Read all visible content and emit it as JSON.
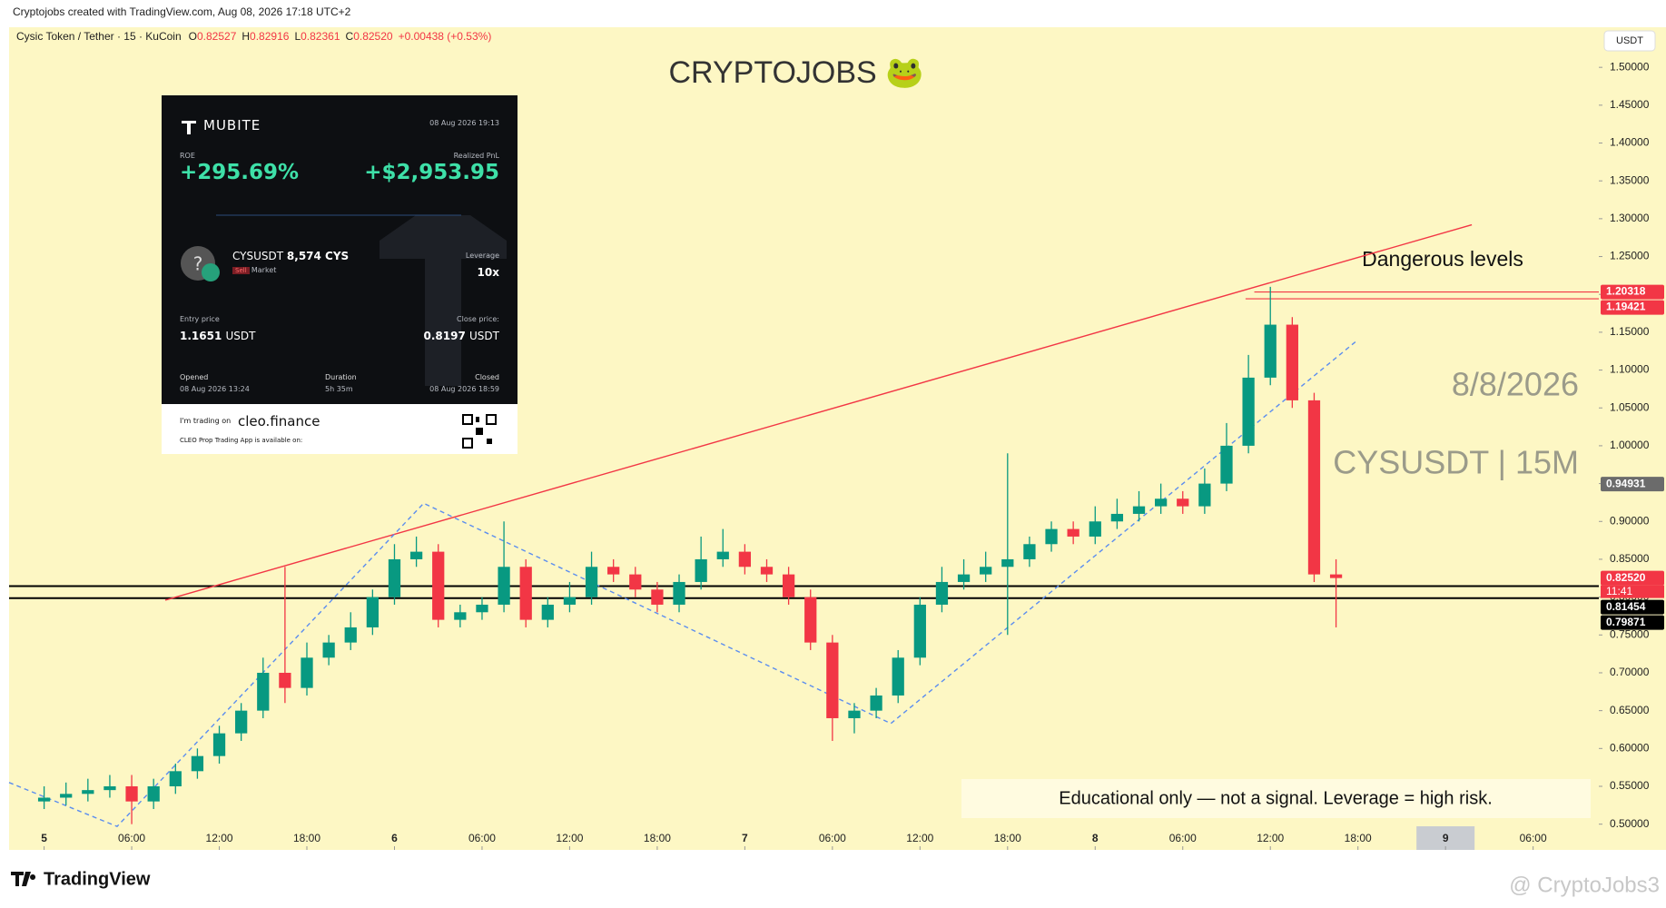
{
  "header": {
    "created": "Cryptojobs created with TradingView.com, Aug 08, 2026 17:18 UTC+2",
    "symbol": "Cysic Token / Tether · 15 · KuCoin",
    "quote_keys": [
      "O",
      "H",
      "L",
      "C"
    ],
    "quote_values": [
      "0.82527",
      "0.82916",
      "0.82361",
      "0.82520"
    ],
    "change": "+0.00438 (+0.53%)",
    "currency": "USDT"
  },
  "chart_data": {
    "type": "candlestick",
    "title": "CRYPTOJOBS 🐸",
    "up_color": "#089981",
    "down_color": "#f23645",
    "x": [
      0,
      1.5,
      3,
      4.5,
      6,
      7.5,
      9,
      10.5,
      12,
      13.5,
      15,
      16.5,
      18,
      19.5,
      21,
      22.5,
      24,
      25.5,
      27,
      28.5,
      30,
      31.5,
      33,
      34.5,
      36,
      37.5,
      39,
      40.5,
      42,
      43.5,
      45,
      46.5,
      48,
      49.5,
      51,
      52.5,
      54,
      55.5,
      57,
      58.5,
      60,
      61.5,
      63,
      64.5,
      66,
      67.5,
      69,
      70.5,
      72,
      73.5,
      75,
      76.5,
      78,
      79.5,
      81,
      82.5,
      84,
      85.5,
      87,
      88.5
    ],
    "open": [
      0.53,
      0.535,
      0.54,
      0.545,
      0.55,
      0.53,
      0.55,
      0.57,
      0.59,
      0.62,
      0.65,
      0.7,
      0.68,
      0.72,
      0.74,
      0.76,
      0.8,
      0.85,
      0.86,
      0.77,
      0.78,
      0.79,
      0.84,
      0.77,
      0.79,
      0.8,
      0.84,
      0.83,
      0.81,
      0.79,
      0.82,
      0.85,
      0.86,
      0.84,
      0.83,
      0.8,
      0.74,
      0.64,
      0.65,
      0.67,
      0.72,
      0.79,
      0.82,
      0.83,
      0.84,
      0.85,
      0.87,
      0.89,
      0.88,
      0.9,
      0.91,
      0.92,
      0.93,
      0.92,
      0.95,
      1.0,
      1.09,
      1.16,
      1.06,
      0.83
    ],
    "high": [
      0.55,
      0.555,
      0.56,
      0.565,
      0.565,
      0.56,
      0.58,
      0.6,
      0.63,
      0.66,
      0.72,
      0.84,
      0.74,
      0.75,
      0.78,
      0.81,
      0.87,
      0.88,
      0.87,
      0.79,
      0.8,
      0.9,
      0.85,
      0.8,
      0.82,
      0.86,
      0.85,
      0.84,
      0.82,
      0.83,
      0.88,
      0.89,
      0.87,
      0.85,
      0.84,
      0.81,
      0.75,
      0.66,
      0.68,
      0.73,
      0.8,
      0.84,
      0.85,
      0.86,
      0.99,
      0.88,
      0.9,
      0.9,
      0.92,
      0.93,
      0.94,
      0.95,
      0.94,
      0.97,
      1.03,
      1.12,
      1.21,
      1.17,
      1.07,
      0.85
    ],
    "low": [
      0.52,
      0.525,
      0.53,
      0.535,
      0.5,
      0.52,
      0.54,
      0.56,
      0.58,
      0.61,
      0.64,
      0.66,
      0.67,
      0.71,
      0.73,
      0.75,
      0.79,
      0.84,
      0.76,
      0.76,
      0.77,
      0.78,
      0.76,
      0.76,
      0.78,
      0.79,
      0.82,
      0.8,
      0.78,
      0.78,
      0.81,
      0.84,
      0.83,
      0.82,
      0.79,
      0.73,
      0.61,
      0.62,
      0.64,
      0.66,
      0.71,
      0.78,
      0.81,
      0.82,
      0.75,
      0.84,
      0.86,
      0.87,
      0.87,
      0.89,
      0.9,
      0.91,
      0.91,
      0.91,
      0.94,
      0.99,
      1.08,
      1.05,
      0.82,
      0.76
    ],
    "close": [
      0.535,
      0.54,
      0.545,
      0.55,
      0.53,
      0.55,
      0.57,
      0.59,
      0.62,
      0.65,
      0.7,
      0.68,
      0.72,
      0.74,
      0.76,
      0.8,
      0.85,
      0.86,
      0.77,
      0.78,
      0.79,
      0.84,
      0.77,
      0.79,
      0.8,
      0.84,
      0.83,
      0.81,
      0.79,
      0.82,
      0.85,
      0.86,
      0.84,
      0.83,
      0.8,
      0.74,
      0.64,
      0.65,
      0.67,
      0.72,
      0.79,
      0.82,
      0.83,
      0.84,
      0.85,
      0.87,
      0.89,
      0.88,
      0.9,
      0.91,
      0.92,
      0.93,
      0.92,
      0.95,
      1.0,
      1.09,
      1.16,
      1.06,
      0.83,
      0.8252
    ],
    "xlim": [
      -2.4,
      106.5
    ],
    "ylim": [
      0.466,
      1.553
    ],
    "xticks": [
      {
        "value": 0,
        "label": "5"
      },
      {
        "value": 6,
        "label": "06:00"
      },
      {
        "value": 12,
        "label": "12:00"
      },
      {
        "value": 18,
        "label": "18:00"
      },
      {
        "value": 24,
        "label": "6"
      },
      {
        "value": 30,
        "label": "06:00"
      },
      {
        "value": 36,
        "label": "12:00"
      },
      {
        "value": 42,
        "label": "18:00"
      },
      {
        "value": 48,
        "label": "7"
      },
      {
        "value": 54,
        "label": "06:00"
      },
      {
        "value": 60,
        "label": "12:00"
      },
      {
        "value": 66,
        "label": "18:00"
      },
      {
        "value": 72,
        "label": "8"
      },
      {
        "value": 78,
        "label": "06:00"
      },
      {
        "value": 84,
        "label": "12:00"
      },
      {
        "value": 90,
        "label": "18:00"
      },
      {
        "value": 96,
        "label": "9"
      },
      {
        "value": 102,
        "label": "06:00"
      }
    ],
    "yticks": [
      {
        "value": 0.5,
        "label": "0.50000"
      },
      {
        "value": 0.55,
        "label": "0.55000"
      },
      {
        "value": 0.6,
        "label": "0.60000"
      },
      {
        "value": 0.65,
        "label": "0.65000"
      },
      {
        "value": 0.7,
        "label": "0.70000"
      },
      {
        "value": 0.75,
        "label": "0.75000"
      },
      {
        "value": 0.8,
        "label": "0.80000"
      },
      {
        "value": 0.85,
        "label": "0.85000"
      },
      {
        "value": 0.9,
        "label": "0.90000"
      },
      {
        "value": 0.95,
        "label": "0.95000"
      },
      {
        "value": 1.0,
        "label": "1.00000"
      },
      {
        "value": 1.05,
        "label": "1.05000"
      },
      {
        "value": 1.1,
        "label": "1.10000"
      },
      {
        "value": 1.15,
        "label": "1.15000"
      },
      {
        "value": 1.2,
        "label": "1.20000"
      },
      {
        "value": 1.25,
        "label": "1.25000"
      },
      {
        "value": 1.3,
        "label": "1.30000"
      },
      {
        "value": 1.35,
        "label": "1.35000"
      },
      {
        "value": 1.4,
        "label": "1.40000"
      },
      {
        "value": 1.45,
        "label": "1.45000"
      },
      {
        "value": 1.5,
        "label": "1.50000"
      }
    ],
    "trend_lines": [
      {
        "color": "#f23645",
        "dashed": false,
        "x": [
          8.3,
          97.8
        ],
        "y": [
          0.796,
          1.292
        ]
      },
      {
        "color": "#5b8def",
        "dashed": true,
        "x": [
          -2.4,
          5.0,
          26.0,
          58.0,
          90.0
        ],
        "y": [
          0.555,
          0.497,
          0.924,
          0.633,
          1.14
        ]
      }
    ],
    "price_labels": [
      {
        "value": 1.20318,
        "label": "1.20318",
        "color": "#f23645",
        "line_from": 82.9
      },
      {
        "value": 1.19421,
        "label": "1.19421",
        "color": "#f23645",
        "line_from": 82.3
      },
      {
        "value": 0.94931,
        "label": "0.94931",
        "color": "#6b6b6b"
      },
      {
        "value": 0.8252,
        "label": "0.82520",
        "color": "#f23645"
      },
      {
        "value": 0.81454,
        "label": "0.81454",
        "color": "#000000",
        "line_from": -2.4
      },
      {
        "value": 0.79871,
        "label": "0.79871",
        "color": "#000000",
        "line_from": -2.4
      }
    ],
    "countdown": "11:41",
    "annotations": {
      "danger": "Dangerous levels",
      "date": "8/8/2026",
      "pair": "CYSUSDT | 15M",
      "disclaimer": "Educational only — not a signal. Leverage  = high risk."
    }
  },
  "card": {
    "brand": "MUBITE",
    "timestamp": "08 Aug 2026 19:13",
    "roe_label": "ROE",
    "roe": "+295.69%",
    "pnl_label": "Realized PnL",
    "pnl": "+$2,953.95",
    "pair": "CYSUSDT",
    "size": "8,574 CYS",
    "side": "Sell",
    "order": "Market",
    "leverage_label": "Leverage",
    "leverage": "10x",
    "entry_label": "Entry price",
    "entry": "1.1651",
    "entry_unit": "USDT",
    "close_label": "Close price:",
    "close": "0.8197",
    "close_unit": "USDT",
    "opened_label": "Opened",
    "opened": "08 Aug 2026 13:24",
    "duration_label": "Duration",
    "duration": "5h 35m",
    "closed_label": "Closed",
    "closed": "08 Aug 2026 18:59",
    "trading_on": "I'm trading on",
    "platform": "cleo.finance",
    "app_note": "CLEO Prop Trading App is available on:"
  },
  "footer": {
    "brand": "TradingView",
    "watermark": "@ CryptoJobs3"
  }
}
